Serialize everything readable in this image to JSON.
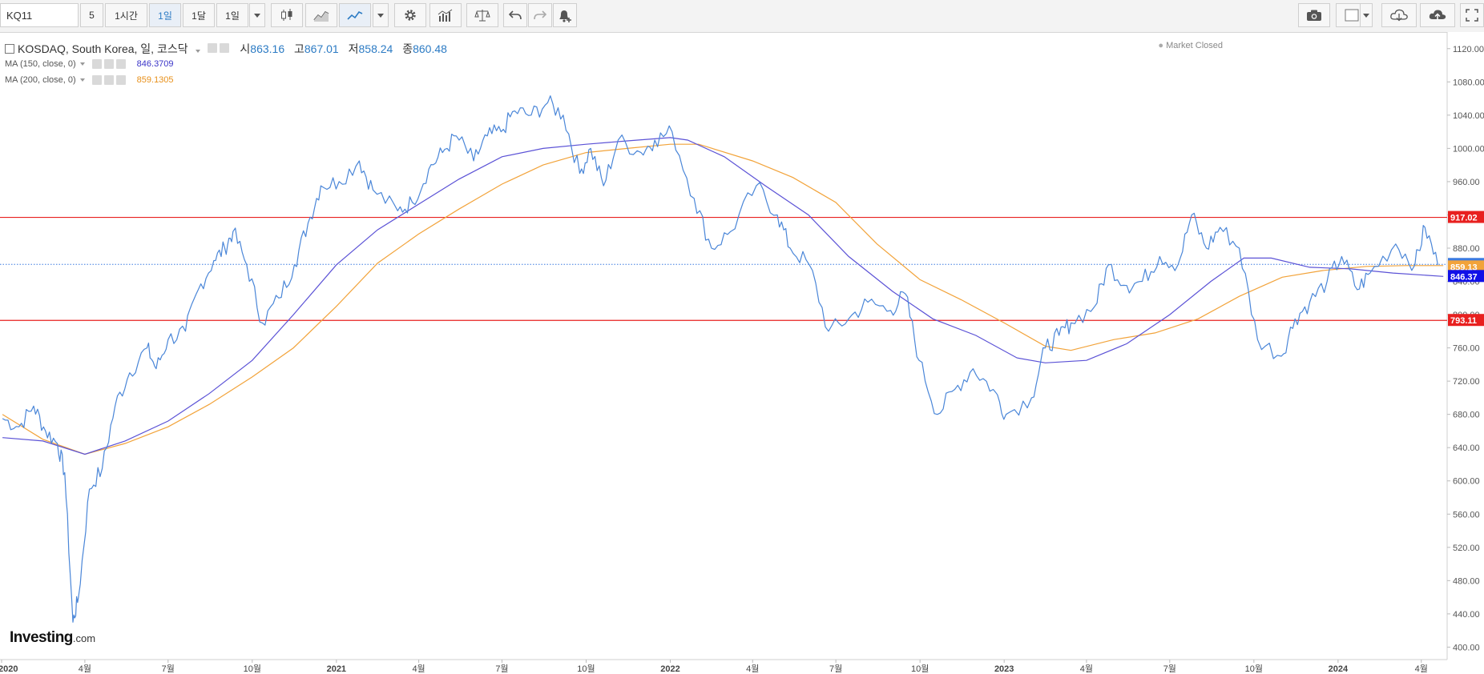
{
  "toolbar": {
    "symbol": "KQ11",
    "intervals": [
      "5",
      "1시간",
      "1일",
      "1달",
      "1일"
    ],
    "active_interval_index": 2
  },
  "legend": {
    "title": "KOSDAQ, South Korea, 일, 코스닥",
    "open_label": "시",
    "open": "863.16",
    "high_label": "고",
    "high": "867.01",
    "low_label": "저",
    "low": "858.24",
    "close_label": "종",
    "close": "860.48",
    "ma150_label": "MA (150, close, 0)",
    "ma150_value": "846.3709",
    "ma200_label": "MA (200, close, 0)",
    "ma200_value": "859.1305",
    "market_status": "Market Closed"
  },
  "logo": {
    "brand": "Investing",
    "suffix": ".com"
  },
  "colors": {
    "price": "#4a86d8",
    "ma150": "#5b52d6",
    "ma200": "#f2a33a",
    "hline": "#e8201f",
    "last_price": "#3b7ae0"
  },
  "chart_data": {
    "type": "line",
    "x_tick_labels": [
      "2020",
      "4월",
      "7월",
      "10월",
      "2021",
      "4월",
      "7월",
      "10월",
      "2022",
      "4월",
      "7월",
      "10월",
      "2023",
      "4월",
      "7월",
      "10월",
      "2024",
      "4월"
    ],
    "y_ticks": [
      400,
      440,
      480,
      520,
      560,
      600,
      640,
      680,
      720,
      760,
      800,
      840,
      880,
      920,
      960,
      1000,
      1040,
      1080,
      1120
    ],
    "y_tick_labels": [
      "400.00",
      "440.00",
      "480.00",
      "520.00",
      "560.00",
      "600.00",
      "640.00",
      "680.00",
      "720.00",
      "760.00",
      "800.00",
      "840.00",
      "880.00",
      "920.00",
      "960.00",
      "1000.00",
      "1040.00",
      "1080.00",
      "1120.00"
    ],
    "ylim": [
      385,
      1140
    ],
    "xlim": [
      "2020-01-01",
      "2024-05-01"
    ],
    "price_line_color": "#4a86d8",
    "horizontal_lines": [
      {
        "value": 917.02,
        "label": "917.02",
        "color": "#e8201f"
      },
      {
        "value": 793.11,
        "label": "793.11",
        "color": "#e8201f"
      }
    ],
    "last_value": {
      "value": 860.48,
      "label": "860.48",
      "color": "#3b7ae0"
    },
    "series": [
      {
        "name": "KOSDAQ",
        "x": [
          "2020-01-02",
          "2020-01-20",
          "2020-02-05",
          "2020-02-18",
          "2020-03-02",
          "2020-03-10",
          "2020-03-19",
          "2020-03-25",
          "2020-04-06",
          "2020-04-20",
          "2020-05-04",
          "2020-05-20",
          "2020-06-08",
          "2020-06-18",
          "2020-07-01",
          "2020-07-20",
          "2020-08-03",
          "2020-08-20",
          "2020-09-01",
          "2020-09-10",
          "2020-09-25",
          "2020-10-12",
          "2020-10-30",
          "2020-11-16",
          "2020-12-01",
          "2020-12-15",
          "2021-01-04",
          "2021-01-26",
          "2021-02-10",
          "2021-03-09",
          "2021-03-25",
          "2021-04-12",
          "2021-04-27",
          "2021-05-12",
          "2021-05-31",
          "2021-06-15",
          "2021-06-30",
          "2021-07-15",
          "2021-08-02",
          "2021-08-20",
          "2021-09-06",
          "2021-09-24",
          "2021-10-06",
          "2021-10-20",
          "2021-11-05",
          "2021-11-30",
          "2021-12-15",
          "2022-01-03",
          "2022-01-27",
          "2022-02-15",
          "2022-03-08",
          "2022-04-05",
          "2022-04-28",
          "2022-05-12",
          "2022-06-02",
          "2022-06-23",
          "2022-07-15",
          "2022-08-05",
          "2022-08-30",
          "2022-09-15",
          "2022-09-30",
          "2022-10-20",
          "2022-11-08",
          "2022-11-28",
          "2022-12-20",
          "2023-01-03",
          "2023-01-31",
          "2023-02-15",
          "2023-03-02",
          "2023-03-15",
          "2023-04-10",
          "2023-04-25",
          "2023-05-15",
          "2023-06-01",
          "2023-06-20",
          "2023-07-10",
          "2023-07-25",
          "2023-08-10",
          "2023-08-25",
          "2023-09-15",
          "2023-10-05",
          "2023-10-31",
          "2023-11-15",
          "2023-12-01",
          "2023-12-20",
          "2024-01-05",
          "2024-01-22",
          "2024-02-05",
          "2024-03-04",
          "2024-03-25",
          "2024-04-05",
          "2024-04-19"
        ],
        "values": [
          675,
          665,
          690,
          660,
          645,
          610,
          430,
          460,
          590,
          615,
          690,
          730,
          760,
          735,
          770,
          780,
          830,
          865,
          880,
          900,
          860,
          790,
          820,
          860,
          910,
          955,
          960,
          985,
          950,
          925,
          935,
          975,
          995,
          1015,
          985,
          1015,
          1020,
          1045,
          1040,
          1055,
          1040,
          970,
          1000,
          955,
          1010,
          995,
          1010,
          1020,
          940,
          880,
          900,
          955,
          920,
          880,
          860,
          780,
          795,
          815,
          805,
          825,
          745,
          680,
          710,
          735,
          710,
          680,
          700,
          760,
          775,
          790,
          810,
          860,
          835,
          840,
          870,
          860,
          920,
          880,
          905,
          880,
          770,
          750,
          795,
          815,
          840,
          870,
          830,
          850,
          885,
          860,
          905,
          860
        ]
      },
      {
        "name": "MA (150, close, 0)",
        "x": [
          "2020-01-02",
          "2020-02-15",
          "2020-04-01",
          "2020-05-15",
          "2020-07-01",
          "2020-08-15",
          "2020-10-01",
          "2020-11-15",
          "2021-01-01",
          "2021-02-15",
          "2021-04-01",
          "2021-05-15",
          "2021-07-01",
          "2021-08-15",
          "2021-10-01",
          "2021-11-15",
          "2022-01-01",
          "2022-01-20",
          "2022-03-01",
          "2022-04-15",
          "2022-06-01",
          "2022-07-15",
          "2022-09-01",
          "2022-10-15",
          "2022-12-01",
          "2023-01-15",
          "2023-02-15",
          "2023-04-01",
          "2023-05-15",
          "2023-07-01",
          "2023-08-15",
          "2023-09-20",
          "2023-10-20",
          "2023-12-01",
          "2024-01-15",
          "2024-03-01",
          "2024-04-25"
        ],
        "values": [
          652,
          648,
          632,
          648,
          672,
          705,
          745,
          800,
          860,
          902,
          933,
          963,
          990,
          1000,
          1005,
          1009,
          1013,
          1010,
          990,
          955,
          920,
          870,
          828,
          795,
          775,
          748,
          742,
          745,
          765,
          800,
          840,
          868,
          868,
          857,
          855,
          850,
          846
        ]
      },
      {
        "name": "MA (200, close, 0)",
        "x": [
          "2020-01-02",
          "2020-02-15",
          "2020-04-01",
          "2020-05-15",
          "2020-07-01",
          "2020-08-15",
          "2020-10-01",
          "2020-11-15",
          "2021-01-01",
          "2021-02-15",
          "2021-04-01",
          "2021-05-15",
          "2021-07-01",
          "2021-08-15",
          "2021-10-01",
          "2021-11-15",
          "2022-01-01",
          "2022-02-01",
          "2022-04-01",
          "2022-05-15",
          "2022-07-01",
          "2022-08-15",
          "2022-10-01",
          "2022-11-15",
          "2023-01-01",
          "2023-02-15",
          "2023-03-15",
          "2023-05-01",
          "2023-06-15",
          "2023-08-01",
          "2023-09-15",
          "2023-11-01",
          "2023-12-15",
          "2024-02-01",
          "2024-03-15",
          "2024-04-25"
        ],
        "values": [
          680,
          650,
          632,
          645,
          665,
          692,
          725,
          760,
          810,
          862,
          897,
          927,
          957,
          980,
          995,
          1000,
          1005,
          1005,
          985,
          965,
          935,
          885,
          842,
          818,
          790,
          762,
          757,
          770,
          778,
          795,
          822,
          845,
          853,
          858,
          859,
          859
        ]
      }
    ]
  }
}
